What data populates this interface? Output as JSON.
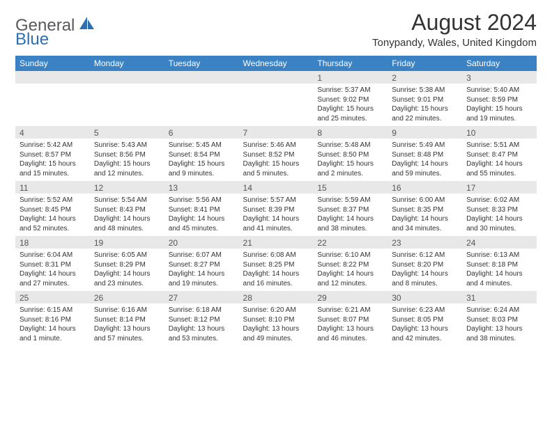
{
  "logo": {
    "text1": "General",
    "text2": "Blue"
  },
  "title": "August 2024",
  "location": "Tonypandy, Wales, United Kingdom",
  "colors": {
    "header_bg": "#3b82c4",
    "header_text": "#ffffff",
    "daynum_bg": "#e8e8e8",
    "daynum_text": "#555555",
    "body_text": "#333333",
    "logo_gray": "#58595b",
    "logo_blue": "#2e6fb0"
  },
  "day_headers": [
    "Sunday",
    "Monday",
    "Tuesday",
    "Wednesday",
    "Thursday",
    "Friday",
    "Saturday"
  ],
  "weeks": [
    [
      {
        "n": "",
        "t": ""
      },
      {
        "n": "",
        "t": ""
      },
      {
        "n": "",
        "t": ""
      },
      {
        "n": "",
        "t": ""
      },
      {
        "n": "1",
        "t": "Sunrise: 5:37 AM\nSunset: 9:02 PM\nDaylight: 15 hours and 25 minutes."
      },
      {
        "n": "2",
        "t": "Sunrise: 5:38 AM\nSunset: 9:01 PM\nDaylight: 15 hours and 22 minutes."
      },
      {
        "n": "3",
        "t": "Sunrise: 5:40 AM\nSunset: 8:59 PM\nDaylight: 15 hours and 19 minutes."
      }
    ],
    [
      {
        "n": "4",
        "t": "Sunrise: 5:42 AM\nSunset: 8:57 PM\nDaylight: 15 hours and 15 minutes."
      },
      {
        "n": "5",
        "t": "Sunrise: 5:43 AM\nSunset: 8:56 PM\nDaylight: 15 hours and 12 minutes."
      },
      {
        "n": "6",
        "t": "Sunrise: 5:45 AM\nSunset: 8:54 PM\nDaylight: 15 hours and 9 minutes."
      },
      {
        "n": "7",
        "t": "Sunrise: 5:46 AM\nSunset: 8:52 PM\nDaylight: 15 hours and 5 minutes."
      },
      {
        "n": "8",
        "t": "Sunrise: 5:48 AM\nSunset: 8:50 PM\nDaylight: 15 hours and 2 minutes."
      },
      {
        "n": "9",
        "t": "Sunrise: 5:49 AM\nSunset: 8:48 PM\nDaylight: 14 hours and 59 minutes."
      },
      {
        "n": "10",
        "t": "Sunrise: 5:51 AM\nSunset: 8:47 PM\nDaylight: 14 hours and 55 minutes."
      }
    ],
    [
      {
        "n": "11",
        "t": "Sunrise: 5:52 AM\nSunset: 8:45 PM\nDaylight: 14 hours and 52 minutes."
      },
      {
        "n": "12",
        "t": "Sunrise: 5:54 AM\nSunset: 8:43 PM\nDaylight: 14 hours and 48 minutes."
      },
      {
        "n": "13",
        "t": "Sunrise: 5:56 AM\nSunset: 8:41 PM\nDaylight: 14 hours and 45 minutes."
      },
      {
        "n": "14",
        "t": "Sunrise: 5:57 AM\nSunset: 8:39 PM\nDaylight: 14 hours and 41 minutes."
      },
      {
        "n": "15",
        "t": "Sunrise: 5:59 AM\nSunset: 8:37 PM\nDaylight: 14 hours and 38 minutes."
      },
      {
        "n": "16",
        "t": "Sunrise: 6:00 AM\nSunset: 8:35 PM\nDaylight: 14 hours and 34 minutes."
      },
      {
        "n": "17",
        "t": "Sunrise: 6:02 AM\nSunset: 8:33 PM\nDaylight: 14 hours and 30 minutes."
      }
    ],
    [
      {
        "n": "18",
        "t": "Sunrise: 6:04 AM\nSunset: 8:31 PM\nDaylight: 14 hours and 27 minutes."
      },
      {
        "n": "19",
        "t": "Sunrise: 6:05 AM\nSunset: 8:29 PM\nDaylight: 14 hours and 23 minutes."
      },
      {
        "n": "20",
        "t": "Sunrise: 6:07 AM\nSunset: 8:27 PM\nDaylight: 14 hours and 19 minutes."
      },
      {
        "n": "21",
        "t": "Sunrise: 6:08 AM\nSunset: 8:25 PM\nDaylight: 14 hours and 16 minutes."
      },
      {
        "n": "22",
        "t": "Sunrise: 6:10 AM\nSunset: 8:22 PM\nDaylight: 14 hours and 12 minutes."
      },
      {
        "n": "23",
        "t": "Sunrise: 6:12 AM\nSunset: 8:20 PM\nDaylight: 14 hours and 8 minutes."
      },
      {
        "n": "24",
        "t": "Sunrise: 6:13 AM\nSunset: 8:18 PM\nDaylight: 14 hours and 4 minutes."
      }
    ],
    [
      {
        "n": "25",
        "t": "Sunrise: 6:15 AM\nSunset: 8:16 PM\nDaylight: 14 hours and 1 minute."
      },
      {
        "n": "26",
        "t": "Sunrise: 6:16 AM\nSunset: 8:14 PM\nDaylight: 13 hours and 57 minutes."
      },
      {
        "n": "27",
        "t": "Sunrise: 6:18 AM\nSunset: 8:12 PM\nDaylight: 13 hours and 53 minutes."
      },
      {
        "n": "28",
        "t": "Sunrise: 6:20 AM\nSunset: 8:10 PM\nDaylight: 13 hours and 49 minutes."
      },
      {
        "n": "29",
        "t": "Sunrise: 6:21 AM\nSunset: 8:07 PM\nDaylight: 13 hours and 46 minutes."
      },
      {
        "n": "30",
        "t": "Sunrise: 6:23 AM\nSunset: 8:05 PM\nDaylight: 13 hours and 42 minutes."
      },
      {
        "n": "31",
        "t": "Sunrise: 6:24 AM\nSunset: 8:03 PM\nDaylight: 13 hours and 38 minutes."
      }
    ]
  ]
}
